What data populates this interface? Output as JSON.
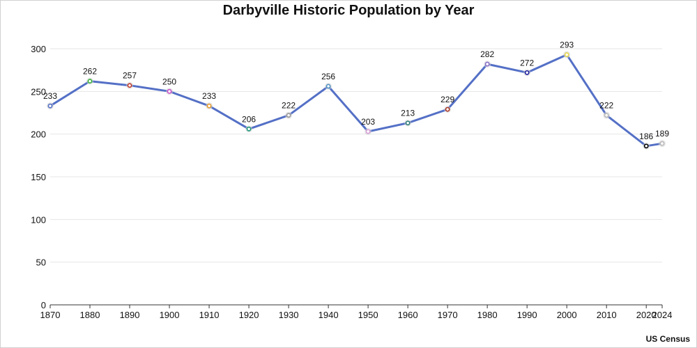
{
  "chart_data": {
    "type": "line",
    "title": "Darbyville Historic Population by Year",
    "source": "US Census",
    "x": [
      1870,
      1880,
      1890,
      1900,
      1910,
      1920,
      1930,
      1940,
      1950,
      1960,
      1970,
      1980,
      1990,
      2000,
      2010,
      2020,
      2024
    ],
    "x_tick_labels": [
      "1870",
      "1880",
      "1890",
      "1900",
      "1910",
      "1920",
      "1930",
      "1940",
      "1950",
      "1960",
      "1970",
      "1980",
      "1990",
      "2000",
      "2010",
      "2020",
      "2024"
    ],
    "series": [
      {
        "values": [
          233,
          262,
          257,
          250,
          233,
          206,
          222,
          256,
          203,
          213,
          229,
          282,
          272,
          293,
          222,
          186,
          189
        ]
      }
    ],
    "ylim": [
      0,
      300
    ],
    "y_ticks": [
      0,
      50,
      100,
      150,
      200,
      250,
      300
    ],
    "grid": "horizontal",
    "line_color": "#5470c6",
    "marker_colors": [
      "#5470c6",
      "#3bb33b",
      "#c0392b",
      "#c94fc9",
      "#e69a2b",
      "#1e9a7a",
      "#999999",
      "#4a90c2",
      "#d9a0d9",
      "#2a7a7a",
      "#a8321e",
      "#8a6fc9",
      "#1a1a9a",
      "#e8d84a",
      "#bbbbbb",
      "#000000",
      "#bbbbbb"
    ]
  }
}
